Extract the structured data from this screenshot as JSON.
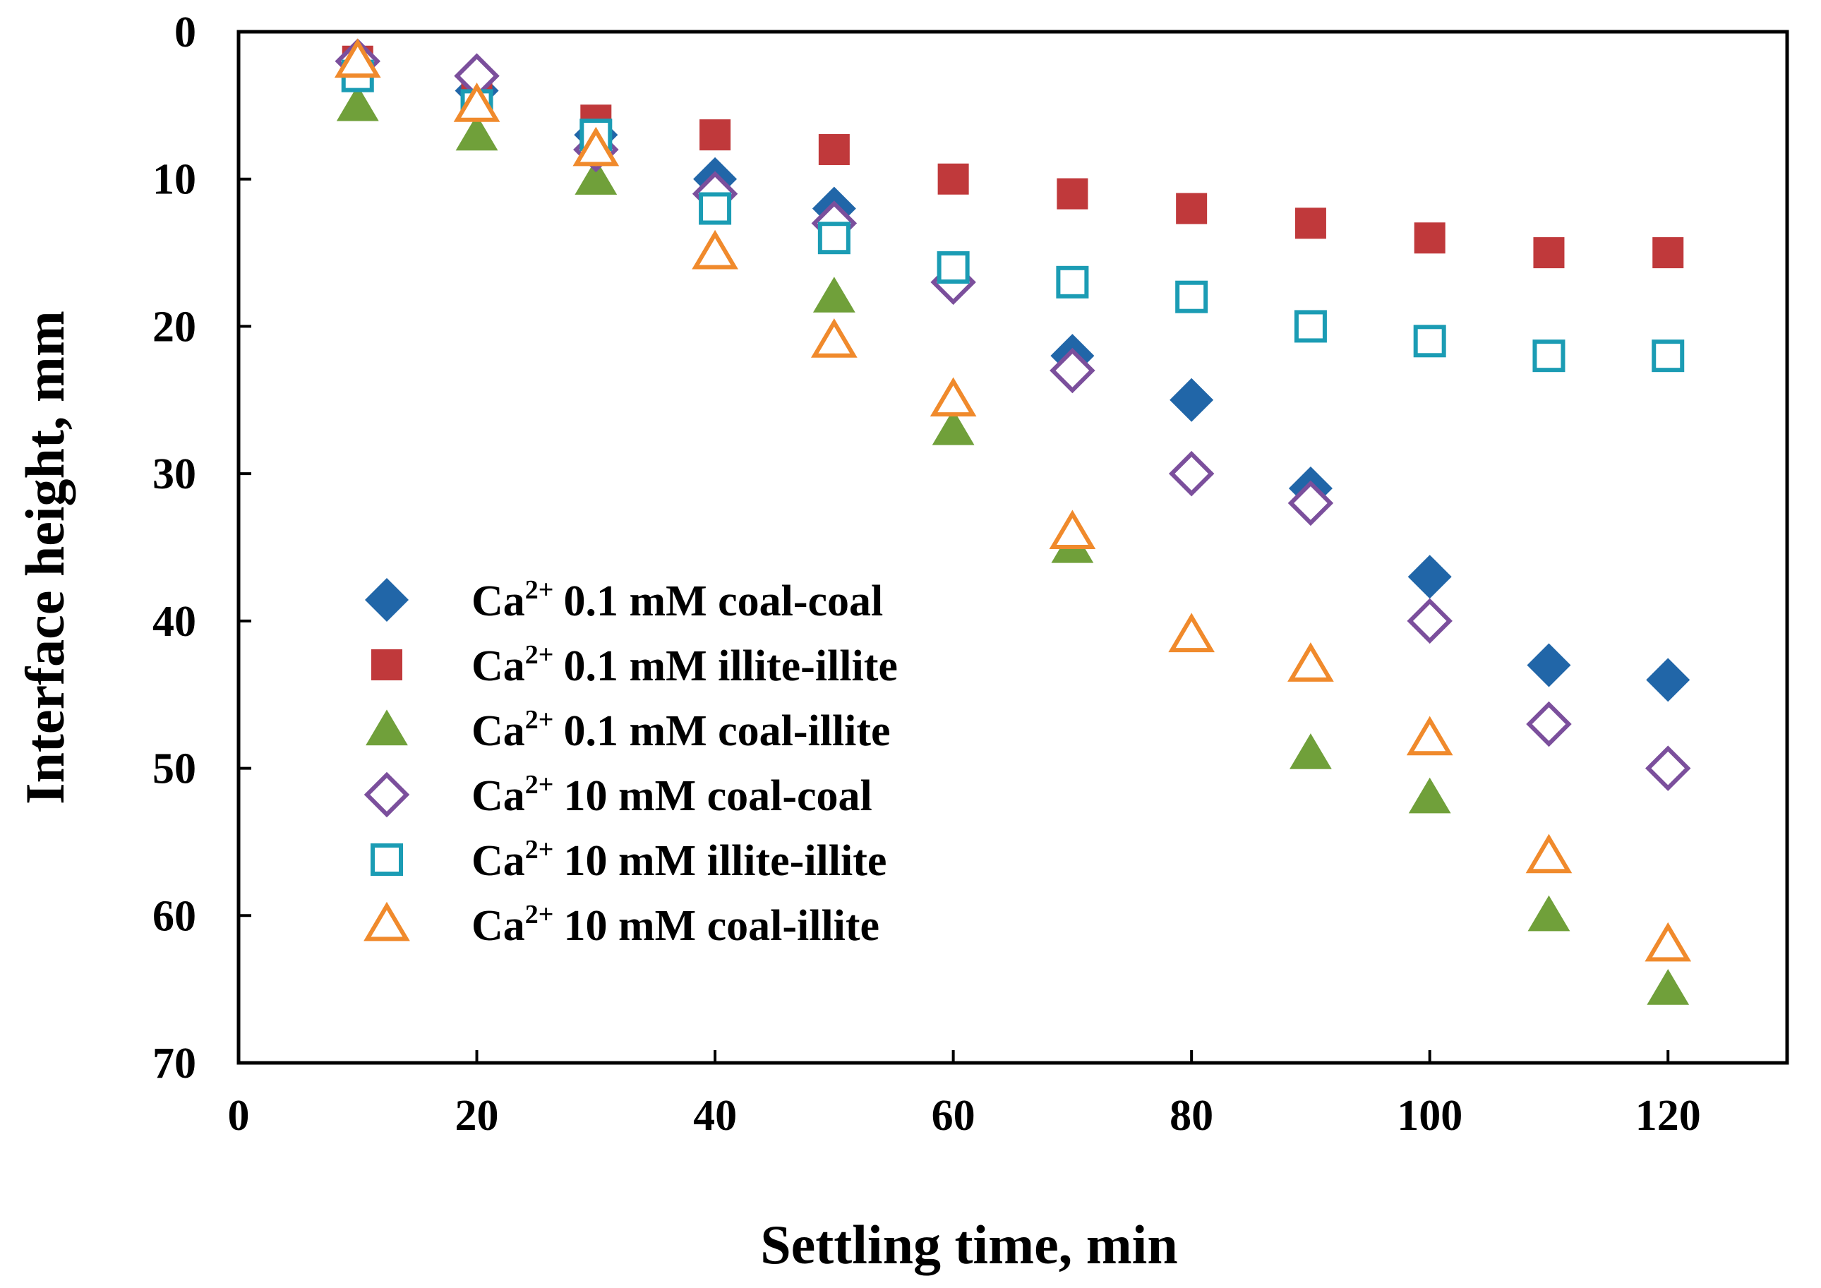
{
  "chart_data": {
    "type": "scatter",
    "title": "",
    "xlabel": "Settling time, min",
    "ylabel": "Interface height, mm",
    "xlim": [
      0,
      130
    ],
    "ylim": [
      0,
      70
    ],
    "y_inverted": true,
    "xticks": [
      "0",
      "20",
      "40",
      "60",
      "80",
      "100",
      "120"
    ],
    "yticks": [
      "0",
      "10",
      "20",
      "30",
      "40",
      "50",
      "60",
      "70"
    ],
    "grid": false,
    "legend_position": "center-left",
    "x": [
      10,
      20,
      30,
      40,
      50,
      60,
      70,
      80,
      90,
      100,
      110,
      120
    ],
    "series": [
      {
        "name": "Ca2+ 0.1 mM coal-coal",
        "ion": "Ca",
        "charge": "2+",
        "label": "0.1 mM coal-coal",
        "marker": "diamond",
        "filled": true,
        "color": "#2166a8",
        "values": [
          2,
          4,
          7,
          10,
          12,
          17,
          22,
          25,
          31,
          37,
          43,
          44
        ]
      },
      {
        "name": "Ca2+ 0.1 mM illite-illite",
        "ion": "Ca",
        "charge": "2+",
        "label": "0.1 mM illite-illite",
        "marker": "square",
        "filled": true,
        "color": "#c0393b",
        "values": [
          2,
          4,
          6,
          7,
          8,
          10,
          11,
          12,
          13,
          14,
          15,
          15
        ]
      },
      {
        "name": "Ca2+ 0.1 mM coal-illite",
        "ion": "Ca",
        "charge": "2+",
        "label": "0.1 mM coal-illite",
        "marker": "triangle",
        "filled": true,
        "color": "#70a03a",
        "values": [
          5,
          7,
          10,
          15,
          18,
          27,
          35,
          41,
          49,
          52,
          60,
          65
        ]
      },
      {
        "name": "Ca2+ 10 mM coal-coal",
        "ion": "Ca",
        "charge": "2+",
        "label": "10 mM coal-coal",
        "marker": "diamond",
        "filled": false,
        "color": "#7b4f9c",
        "values": [
          2,
          3,
          8,
          11,
          13,
          17,
          23,
          30,
          32,
          40,
          47,
          50
        ]
      },
      {
        "name": "Ca2+ 10 mM illite-illite",
        "ion": "Ca",
        "charge": "2+",
        "label": "10 mM illite-illite",
        "marker": "square",
        "filled": false,
        "color": "#1b9cb4",
        "values": [
          3,
          5,
          7,
          12,
          14,
          16,
          17,
          18,
          20,
          21,
          22,
          22
        ]
      },
      {
        "name": "Ca2+ 10 mM coal-illite",
        "ion": "Ca",
        "charge": "2+",
        "label": "10 mM coal-illite",
        "marker": "triangle",
        "filled": false,
        "color": "#f08a2c",
        "values": [
          2,
          5,
          8,
          15,
          21,
          25,
          34,
          41,
          43,
          48,
          56,
          62
        ]
      }
    ]
  }
}
